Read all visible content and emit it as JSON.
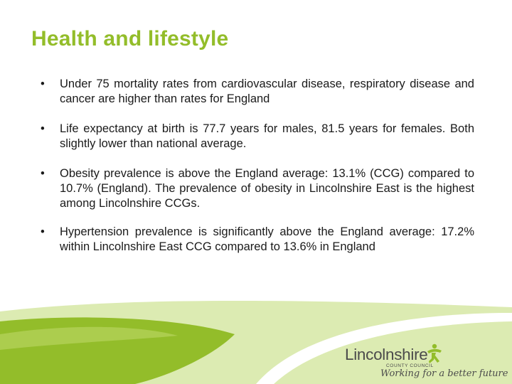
{
  "slide": {
    "title": "Health and lifestyle",
    "bullet_symbol": "•",
    "bullets": [
      "Under 75 mortality rates from cardiovascular disease, respiratory disease and cancer are higher than rates for England",
      "Life expectancy at birth is 77.7 years for males, 81.5 years for females. Both slightly lower than national average.",
      "Obesity prevalence is above the England average: 13.1% (CCG) compared to 10.7% (England). The prevalence of obesity in Lincolnshire East is the highest among Lincolnshire CCGs.",
      "Hypertension prevalence is significantly above the England average: 17.2% within Lincolnshire East CCG compared to 13.6% in England"
    ]
  },
  "logo": {
    "name": "Lincolnshire",
    "subtitle": "COUNTY COUNCIL",
    "tagline": "Working for a better future"
  },
  "colors": {
    "accent_green": "#93bd2a",
    "light_green": "#dcebb2",
    "text": "#1a1a1a"
  }
}
